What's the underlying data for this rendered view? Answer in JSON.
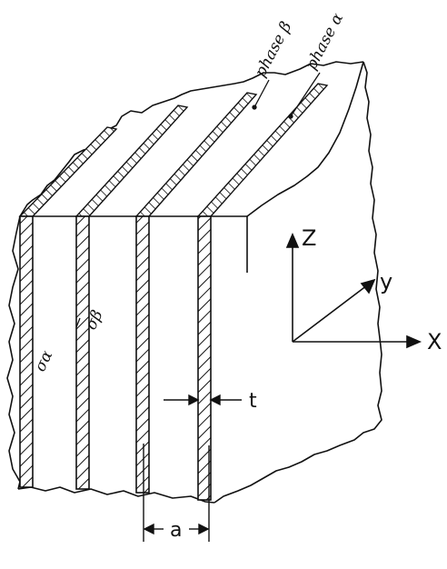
{
  "labels": {
    "phase_beta": "phase β",
    "phase_alpha": "phase α",
    "sigma_alpha": "σα",
    "sigma_beta": "σβ",
    "thickness": "t",
    "spacing": "a"
  },
  "axes": {
    "z": "Z",
    "y": "y",
    "x": "X"
  }
}
